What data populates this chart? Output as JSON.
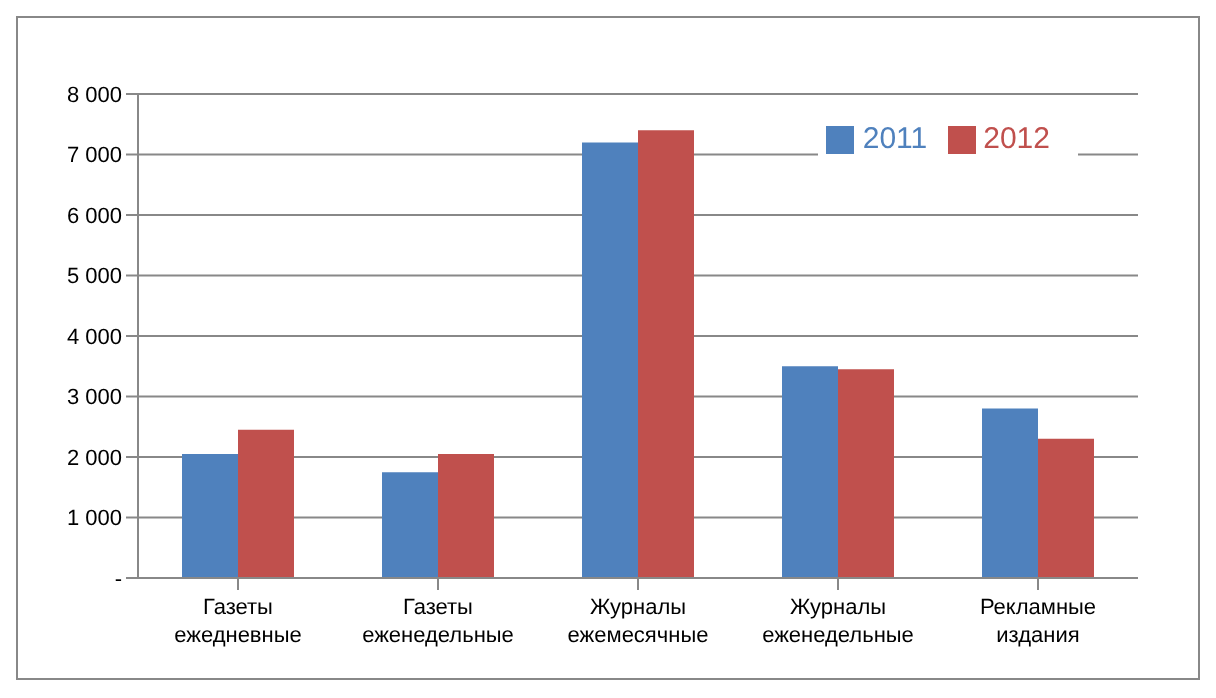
{
  "chart_data": {
    "type": "bar",
    "categories": [
      "Газеты ежедневные",
      "Газеты еженедельные",
      "Журналы ежемесячные",
      "Журналы еженедельные",
      "Рекламные издания"
    ],
    "series": [
      {
        "name": "2011",
        "color": "#4f81bd",
        "values": [
          2050,
          1750,
          7200,
          3500,
          2800
        ]
      },
      {
        "name": "2012",
        "color": "#c0504d",
        "values": [
          2450,
          2050,
          7400,
          3450,
          2300
        ]
      }
    ],
    "ylim": [
      0,
      8000
    ],
    "yticks": [
      {
        "value": 0,
        "label": "-"
      },
      {
        "value": 1000,
        "label": "1 000"
      },
      {
        "value": 2000,
        "label": "2 000"
      },
      {
        "value": 3000,
        "label": "3 000"
      },
      {
        "value": 4000,
        "label": "4 000"
      },
      {
        "value": 5000,
        "label": "5 000"
      },
      {
        "value": 6000,
        "label": "6 000"
      },
      {
        "value": 7000,
        "label": "7 000"
      },
      {
        "value": 8000,
        "label": "8 000"
      }
    ],
    "grid": "y",
    "legend": "top right"
  }
}
